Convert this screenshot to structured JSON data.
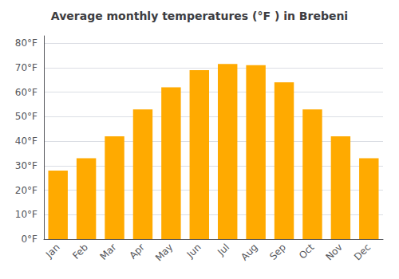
{
  "chart_data": {
    "type": "bar",
    "title": "Average monthly temperatures (°F ) in Brebeni",
    "categories": [
      "Jan",
      "Feb",
      "Mar",
      "Apr",
      "May",
      "Jun",
      "Jul",
      "Aug",
      "Sep",
      "Oct",
      "Nov",
      "Dec"
    ],
    "values": [
      28,
      33,
      42,
      53,
      62,
      69,
      71.5,
      71,
      64,
      53,
      42,
      33
    ],
    "color": "#FFAA00",
    "ylim": [
      0,
      83
    ],
    "yticks": [
      {
        "value": 0,
        "label": "0°F"
      },
      {
        "value": 10,
        "label": "10°F"
      },
      {
        "value": 20,
        "label": "20°F"
      },
      {
        "value": 30,
        "label": "30°F"
      },
      {
        "value": 40,
        "label": "40°F"
      },
      {
        "value": 50,
        "label": "50°F"
      },
      {
        "value": 60,
        "label": "60°F"
      },
      {
        "value": 70,
        "label": "70°F"
      },
      {
        "value": 80,
        "label": "80°F"
      }
    ],
    "grid": true
  }
}
